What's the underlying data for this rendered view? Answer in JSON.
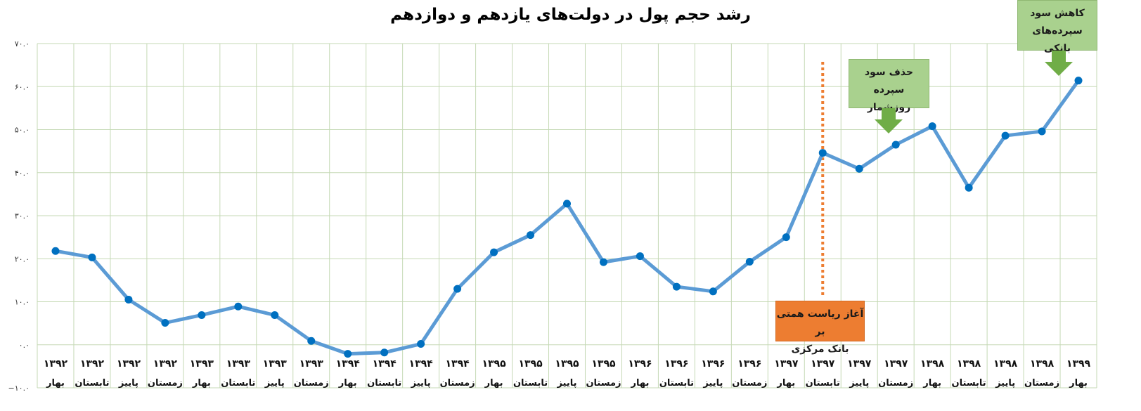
{
  "title": "رشد حجم پول در دولت‌های یازدهم و دوازدهم",
  "chart_data": {
    "type": "line",
    "title": "رشد حجم پول در دولت‌های یازدهم و دوازدهم",
    "xlabel": "",
    "ylabel": "",
    "ylim": [
      -10,
      70
    ],
    "yticks": [
      "−۱۰.۰",
      "۰.۰",
      "۱۰.۰",
      "۲۰.۰",
      "۳۰.۰",
      "۴۰.۰",
      "۵۰.۰",
      "۶۰.۰",
      "۷۰.۰"
    ],
    "ytick_values": [
      -10,
      0,
      10,
      20,
      30,
      40,
      50,
      60,
      70
    ],
    "grid": true,
    "categories": [
      {
        "year": "۱۳۹۲",
        "season": "بهار"
      },
      {
        "year": "۱۳۹۲",
        "season": "تابستان"
      },
      {
        "year": "۱۳۹۲",
        "season": "پاییز"
      },
      {
        "year": "۱۳۹۲",
        "season": "زمستان"
      },
      {
        "year": "۱۳۹۳",
        "season": "بهار"
      },
      {
        "year": "۱۳۹۳",
        "season": "تابستان"
      },
      {
        "year": "۱۳۹۳",
        "season": "پاییز"
      },
      {
        "year": "۱۳۹۳",
        "season": "زمستان"
      },
      {
        "year": "۱۳۹۴",
        "season": "بهار"
      },
      {
        "year": "۱۳۹۴",
        "season": "تابستان"
      },
      {
        "year": "۱۳۹۴",
        "season": "پاییز"
      },
      {
        "year": "۱۳۹۴",
        "season": "زمستان"
      },
      {
        "year": "۱۳۹۵",
        "season": "بهار"
      },
      {
        "year": "۱۳۹۵",
        "season": "تابستان"
      },
      {
        "year": "۱۳۹۵",
        "season": "پاییز"
      },
      {
        "year": "۱۳۹۵",
        "season": "زمستان"
      },
      {
        "year": "۱۳۹۶",
        "season": "بهار"
      },
      {
        "year": "۱۳۹۶",
        "season": "تابستان"
      },
      {
        "year": "۱۳۹۶",
        "season": "پاییز"
      },
      {
        "year": "۱۳۹۶",
        "season": "زمستان"
      },
      {
        "year": "۱۳۹۷",
        "season": "بهار"
      },
      {
        "year": "۱۳۹۷",
        "season": "تابستان"
      },
      {
        "year": "۱۳۹۷",
        "season": "پاییز"
      },
      {
        "year": "۱۳۹۷",
        "season": "زمستان"
      },
      {
        "year": "۱۳۹۸",
        "season": "بهار"
      },
      {
        "year": "۱۳۹۸",
        "season": "تابستان"
      },
      {
        "year": "۱۳۹۸",
        "season": "پاییز"
      },
      {
        "year": "۱۳۹۸",
        "season": "زمستان"
      },
      {
        "year": "۱۳۹۹",
        "season": "بهار"
      }
    ],
    "series": [
      {
        "values": [
          21.8,
          20.3,
          10.5,
          5.1,
          6.9,
          8.9,
          6.9,
          0.9,
          -2.1,
          -1.8,
          0.2,
          13.0,
          21.5,
          25.5,
          32.8,
          19.2,
          20.6,
          13.5,
          12.4,
          19.3,
          25.0,
          44.6,
          40.9,
          46.5,
          50.8,
          36.5,
          48.6,
          49.6,
          61.4
        ],
        "color": "#5b9bd5",
        "marker_color": "#0070c0"
      }
    ],
    "annotations": [
      {
        "text_lines": [
          "آغاز ریاست همتی بر",
          "بانک مرکزی"
        ],
        "type": "vertical-line",
        "at_index": 21,
        "line_color": "#ed7d31",
        "box_color": "#ed7d31"
      },
      {
        "text_lines": [
          "حذف سود سپرده",
          "روزشمار"
        ],
        "type": "arrow",
        "at_index": 23,
        "box_color": "#a9d18e",
        "arrow_color": "#70ad47"
      },
      {
        "text_lines": [
          "کاهش سود",
          "سپرده‌های بانکی"
        ],
        "type": "arrow",
        "at_index": 28,
        "box_color": "#a9d18e",
        "arrow_color": "#70ad47"
      }
    ],
    "grid_color": "#c5d9b5"
  }
}
